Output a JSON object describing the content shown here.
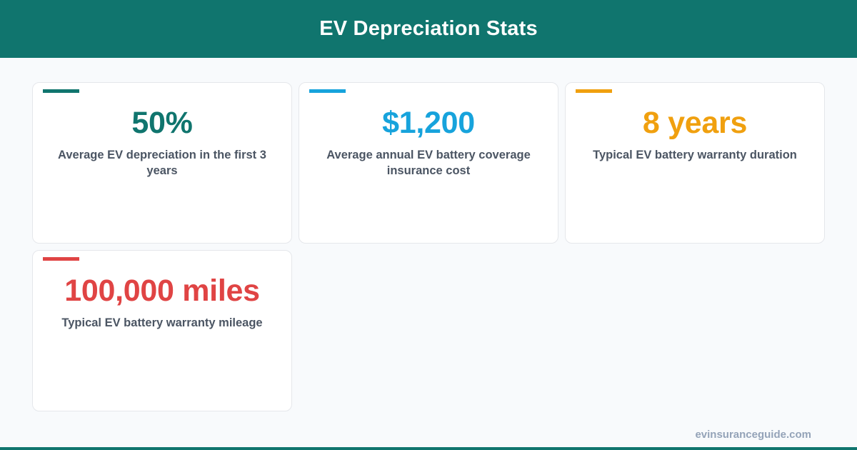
{
  "header": {
    "title": "EV Depreciation Stats",
    "background": "#10756e"
  },
  "cards": [
    {
      "value": "50%",
      "label": "Average EV depreciation in the first 3 years",
      "color": "#10756e"
    },
    {
      "value": "$1,200",
      "label": "Average annual EV battery coverage insurance cost",
      "color": "#17a3dc"
    },
    {
      "value": "8 years",
      "label": "Typical EV battery warranty duration",
      "color": "#f0a00f"
    },
    {
      "value": "100,000 miles",
      "label": "Typical EV battery warranty mileage",
      "color": "#e04444"
    }
  ],
  "footer": {
    "site": "evinsuranceguide.com",
    "bar_color": "#10756e"
  }
}
